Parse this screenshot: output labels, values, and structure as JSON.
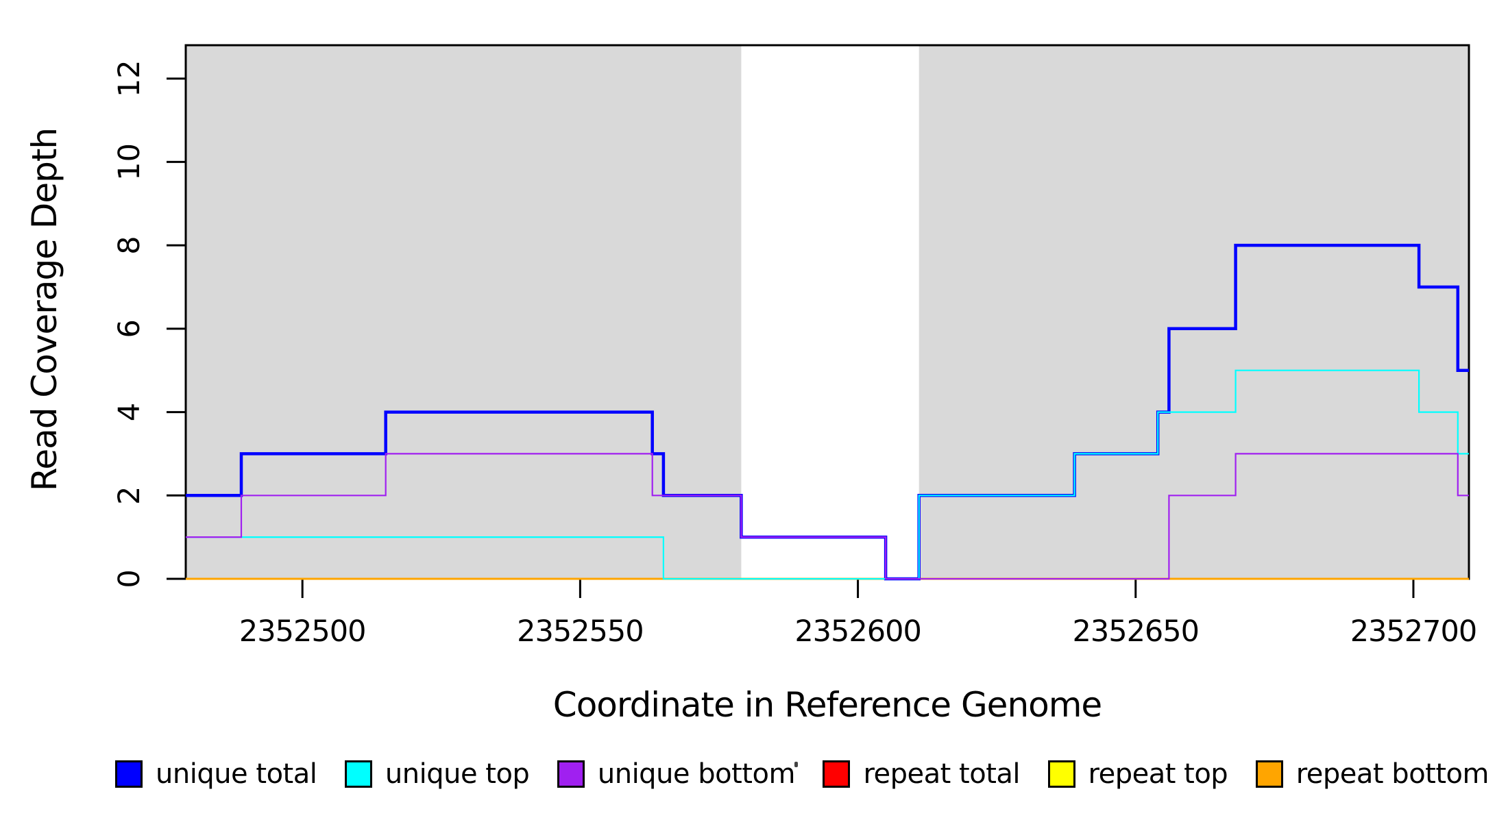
{
  "figure": {
    "title": ""
  },
  "chart_data": {
    "type": "line",
    "subtype": "step-coverage-plot",
    "title": "",
    "xlabel": "Coordinate in Reference Genome",
    "ylabel": "Read Coverage Depth",
    "xlim": [
      2352479,
      2352710
    ],
    "ylim": [
      0,
      12.8
    ],
    "x_ticks": [
      2352500,
      2352550,
      2352600,
      2352650,
      2352700
    ],
    "y_ticks": [
      0,
      2,
      4,
      6,
      8,
      10,
      12
    ],
    "grid": false,
    "legend_position": "bottom",
    "step_mode": "post",
    "shaded_regions": [
      {
        "x0": 2352479,
        "x1": 2352579,
        "color": "#D9D9D9"
      },
      {
        "x0": 2352611,
        "x1": 2352710,
        "color": "#D9D9D9"
      }
    ],
    "draw_order": [
      "repeat_total",
      "repeat_top",
      "repeat_bottom",
      "unique_total",
      "unique_top",
      "unique_bottom"
    ],
    "series": [
      {
        "name": "unique_total",
        "label": "unique total",
        "color": "#0000FF",
        "line_width": 4.5,
        "points": [
          [
            2352479,
            2
          ],
          [
            2352489,
            3
          ],
          [
            2352515,
            4
          ],
          [
            2352563,
            3
          ],
          [
            2352565,
            2
          ],
          [
            2352579,
            1
          ],
          [
            2352605,
            0
          ],
          [
            2352611,
            2
          ],
          [
            2352639,
            3
          ],
          [
            2352654,
            4
          ],
          [
            2352656,
            6
          ],
          [
            2352668,
            8
          ],
          [
            2352701,
            7
          ],
          [
            2352708,
            5
          ]
        ]
      },
      {
        "name": "unique_top",
        "label": "unique top",
        "color": "#00FFFF",
        "line_width": 2.2,
        "points": [
          [
            2352479,
            1
          ],
          [
            2352565,
            0
          ],
          [
            2352611,
            2
          ],
          [
            2352639,
            3
          ],
          [
            2352654,
            4
          ],
          [
            2352668,
            5
          ],
          [
            2352701,
            4
          ],
          [
            2352708,
            3
          ]
        ]
      },
      {
        "name": "unique_bottom",
        "label": "unique bottom",
        "color": "#A020F0",
        "line_width": 2.2,
        "points": [
          [
            2352479,
            1
          ],
          [
            2352489,
            2
          ],
          [
            2352515,
            3
          ],
          [
            2352563,
            2
          ],
          [
            2352579,
            1
          ],
          [
            2352605,
            0
          ],
          [
            2352656,
            2
          ],
          [
            2352668,
            3
          ],
          [
            2352708,
            2
          ]
        ]
      },
      {
        "name": "repeat_total",
        "label": "repeat total",
        "color": "#FF0000",
        "line_width": 2.2,
        "points": [
          [
            2352479,
            0
          ]
        ]
      },
      {
        "name": "repeat_top",
        "label": "repeat top",
        "color": "#FFFF00",
        "line_width": 2.2,
        "points": [
          [
            2352479,
            0
          ]
        ]
      },
      {
        "name": "repeat_bottom",
        "label": "repeat bottom",
        "color": "#FFA500",
        "line_width": 3,
        "points": [
          [
            2352479,
            0
          ]
        ]
      }
    ],
    "legend": [
      {
        "label": "unique total",
        "color": "#0000FF"
      },
      {
        "label": "unique top",
        "color": "#00FFFF"
      },
      {
        "label": "unique bottom",
        "color": "#A020F0"
      },
      {
        "label": "repeat total",
        "color": "#FF0000"
      },
      {
        "label": "repeat top",
        "color": "#FFFF00"
      },
      {
        "label": "repeat bottom",
        "color": "#FFA500"
      }
    ]
  }
}
